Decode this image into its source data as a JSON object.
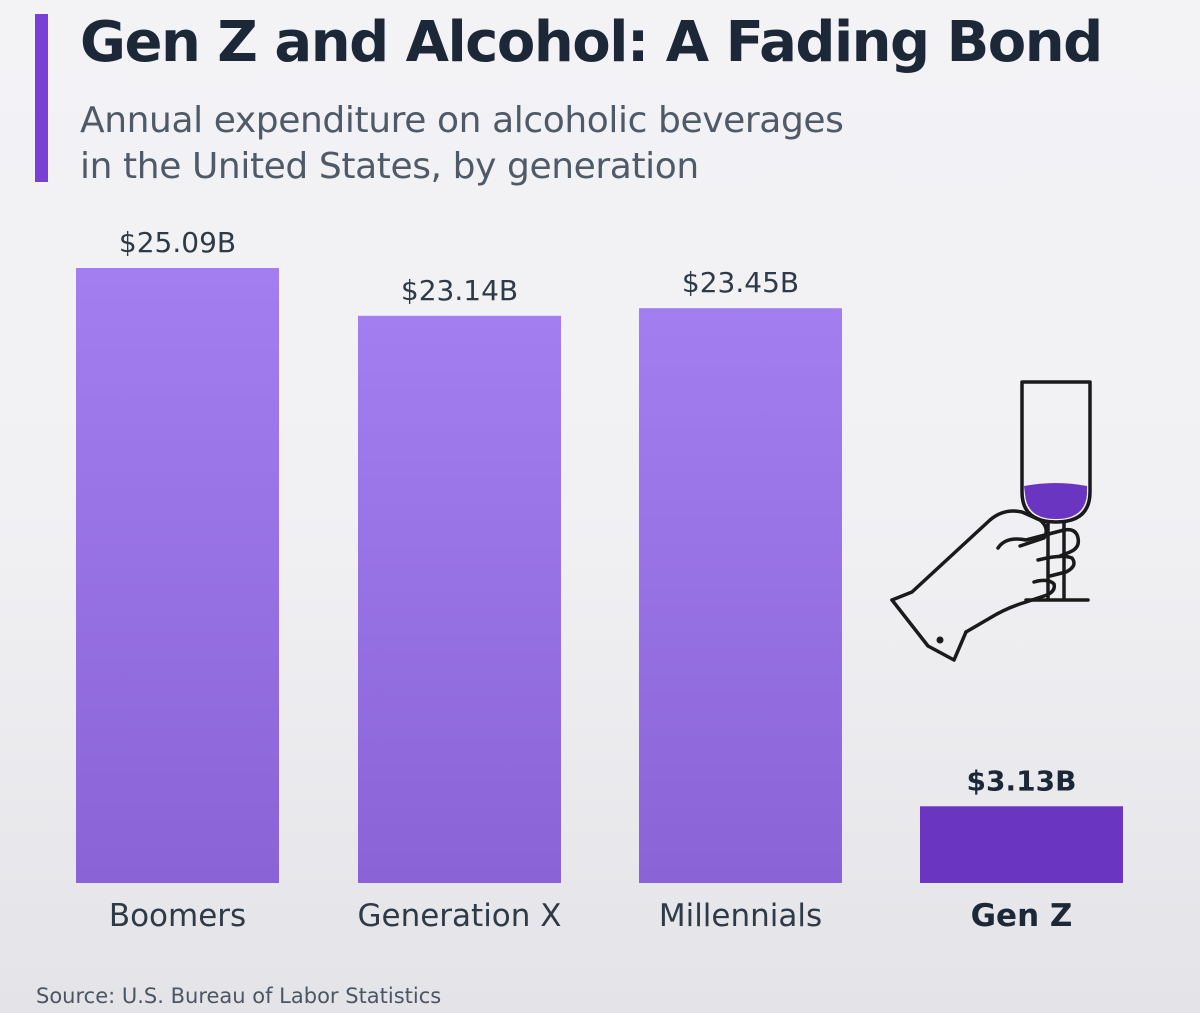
{
  "title": "Gen Z and Alcohol: A Fading Bond",
  "subtitle_line1": "Annual expenditure on alcoholic beverages",
  "subtitle_line2": "in the United States, by generation",
  "source": "Source: U.S. Bureau of Labor Statistics",
  "colors": {
    "accent": "#7b3fd6",
    "bar_top": "#a27ef0",
    "bar_bottom": "#8a64d6",
    "highlight_bar": "#6a35c0",
    "title": "#1c2838",
    "text": "#2f3a48"
  },
  "icon": "wine-glass-hand-icon",
  "chart_data": {
    "type": "bar",
    "categories": [
      "Boomers",
      "Generation X",
      "Millennials",
      "Gen Z"
    ],
    "values": [
      25.09,
      23.14,
      23.45,
      3.13
    ],
    "value_labels": [
      "$25.09B",
      "$23.14B",
      "$23.45B",
      "$3.13B"
    ],
    "highlight": "Gen Z",
    "unit": "billion USD",
    "grid": false,
    "legend": "none"
  }
}
